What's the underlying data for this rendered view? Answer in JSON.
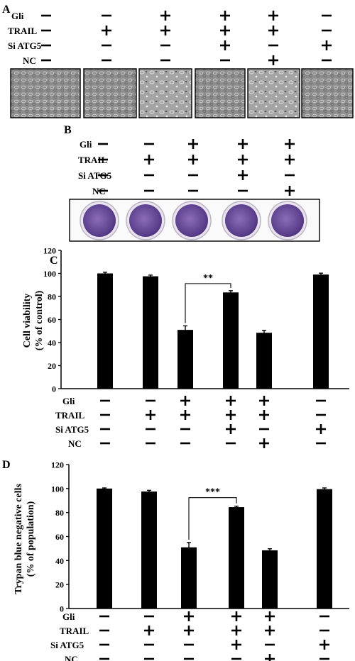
{
  "panel_a": {
    "letter": "A",
    "rows": [
      {
        "label": "Gli",
        "signs": [
          "−",
          "−",
          "+",
          "+",
          "+",
          "−"
        ]
      },
      {
        "label": "TRAIL",
        "signs": [
          "−",
          "+",
          "+",
          "+",
          "+",
          "−"
        ]
      },
      {
        "label": "Si ATG5",
        "signs": [
          "−",
          "−",
          "−",
          "+",
          "−",
          "+"
        ]
      },
      {
        "label": "NC",
        "signs": [
          "−",
          "−",
          "−",
          "−",
          "+",
          "−"
        ]
      }
    ],
    "micrograph_count": 6
  },
  "panel_b": {
    "letter": "B",
    "rows": [
      {
        "label": "Gli",
        "signs": [
          "−",
          "−",
          "+",
          "+",
          "+"
        ]
      },
      {
        "label": "TRAIL",
        "signs": [
          "−",
          "+",
          "+",
          "+",
          "+"
        ]
      },
      {
        "label": "Si ATG5",
        "signs": [
          "−",
          "−",
          "−",
          "+",
          "−"
        ]
      },
      {
        "label": "NC",
        "signs": [
          "−",
          "−",
          "−",
          "−",
          "+"
        ]
      }
    ],
    "well_color": "#6a4a9a"
  },
  "chart_data": [
    {
      "panel": "C",
      "type": "bar",
      "ylabel": [
        "Cell viability",
        "(% of control)"
      ],
      "ylim": [
        0,
        120
      ],
      "yticks": [
        "0",
        "20",
        "40",
        "60",
        "80",
        "100",
        "120"
      ],
      "values": [
        100,
        97.5,
        51,
        83.5,
        48.5,
        99
      ],
      "errors": [
        1,
        1,
        3.5,
        1.5,
        2,
        1.2
      ],
      "bar_color": "#000000",
      "significance": {
        "from": 2,
        "to": 3,
        "label": "**"
      },
      "conditions": [
        {
          "label": "Gli",
          "signs": [
            "−",
            "−",
            "+",
            "+",
            "+",
            "−"
          ]
        },
        {
          "label": "TRAIL",
          "signs": [
            "−",
            "+",
            "+",
            "+",
            "+",
            "−"
          ]
        },
        {
          "label": "Si ATG5",
          "signs": [
            "−",
            "−",
            "−",
            "+",
            "−",
            "+"
          ]
        },
        {
          "label": "NC",
          "signs": [
            "−",
            "−",
            "−",
            "−",
            "+",
            "−"
          ]
        }
      ]
    },
    {
      "panel": "D",
      "type": "bar",
      "ylabel": [
        "Trypan blue negative cells",
        "(% of population)"
      ],
      "ylim": [
        0,
        120
      ],
      "yticks": [
        "0",
        "20",
        "40",
        "60",
        "80",
        "100",
        "120"
      ],
      "values": [
        100,
        97.5,
        51,
        84.5,
        48.5,
        99.5
      ],
      "errors": [
        0.5,
        1,
        4,
        0.8,
        1.3,
        1
      ],
      "bar_color": "#000000",
      "significance": {
        "from": 2,
        "to": 3,
        "label": "***"
      },
      "conditions": [
        {
          "label": "Gli",
          "signs": [
            "−",
            "−",
            "+",
            "+",
            "+",
            "−"
          ]
        },
        {
          "label": "TRAIL",
          "signs": [
            "−",
            "+",
            "+",
            "+",
            "+",
            "−"
          ]
        },
        {
          "label": "Si ATG5",
          "signs": [
            "−",
            "−",
            "−",
            "+",
            "−",
            "+"
          ]
        },
        {
          "label": "NC",
          "signs": [
            "−",
            "−",
            "−",
            "−",
            "+",
            "−"
          ]
        }
      ]
    }
  ]
}
